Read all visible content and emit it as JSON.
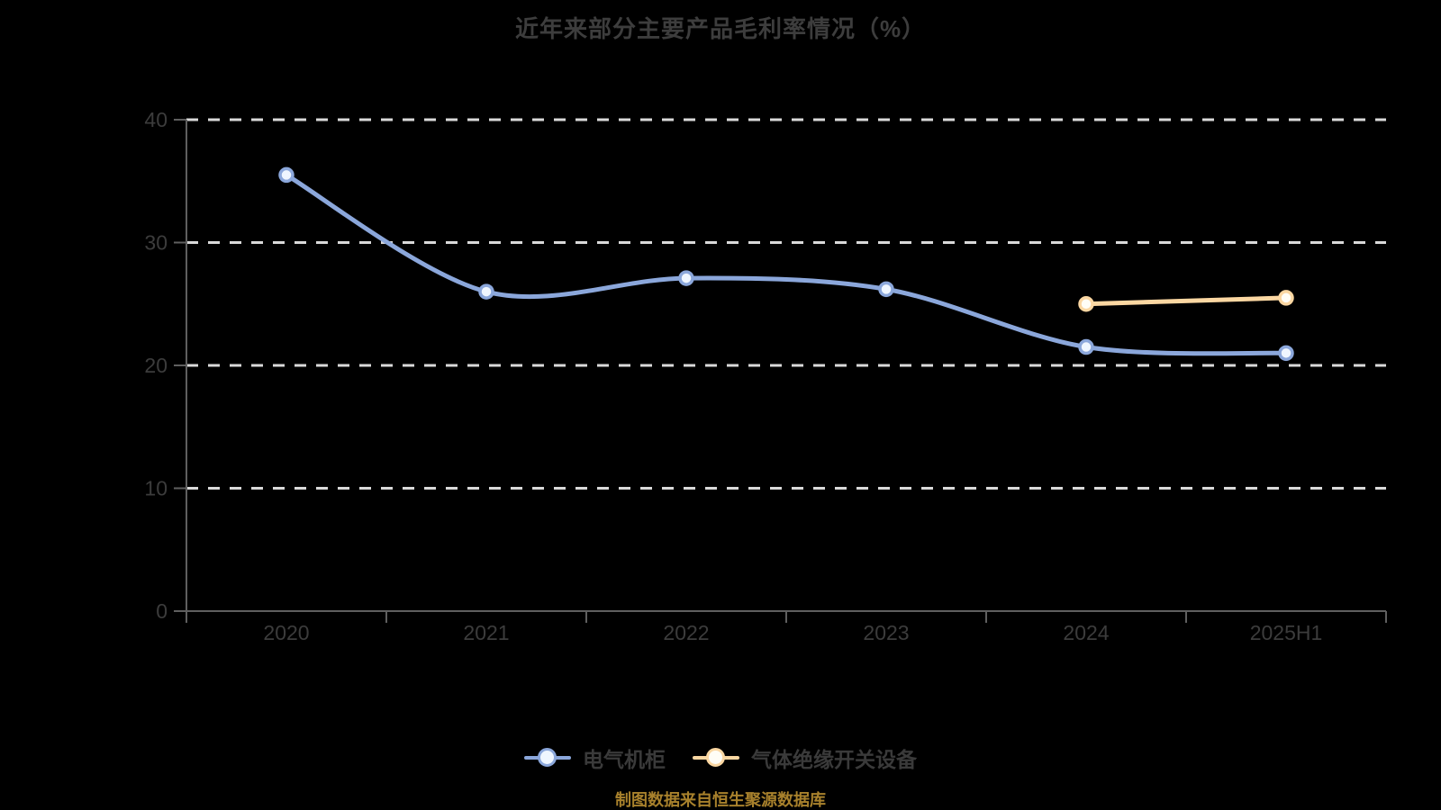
{
  "title": "近年来部分主要产品毛利率情况（%）",
  "caption": "制图数据来自恒生聚源数据库",
  "colors": {
    "background": "#000000",
    "title_text": "#3d3d3d",
    "axis_label_text": "#3c3c3c",
    "legend_text": "#3a3a3a",
    "axis_line": "#5f5f5f",
    "gridline": "#d9d9d9",
    "caption_text": "#a8812c"
  },
  "chart_data": {
    "type": "line",
    "title": "近年来部分主要产品毛利率情况（%）",
    "categories": [
      "2020",
      "2021",
      "2022",
      "2023",
      "2024",
      "2025H1"
    ],
    "series": [
      {
        "name": "电气机柜",
        "color": "#8ba7db",
        "marker_fill": "#eff6ff",
        "values": [
          35.5,
          26.0,
          27.1,
          26.2,
          21.5,
          21.0
        ]
      },
      {
        "name": "气体绝缘开关设备",
        "color": "#fbd7a2",
        "marker_fill": "#fffdf6",
        "values": [
          null,
          null,
          null,
          null,
          25.0,
          25.5
        ]
      }
    ],
    "xlabel": "",
    "ylabel": "",
    "ylim": [
      0,
      40
    ],
    "yticks": [
      0,
      10,
      20,
      30,
      40
    ],
    "grid": "horizontal dashed gridlines",
    "legend_position": "bottom",
    "line_style": "smooth with circular markers"
  }
}
